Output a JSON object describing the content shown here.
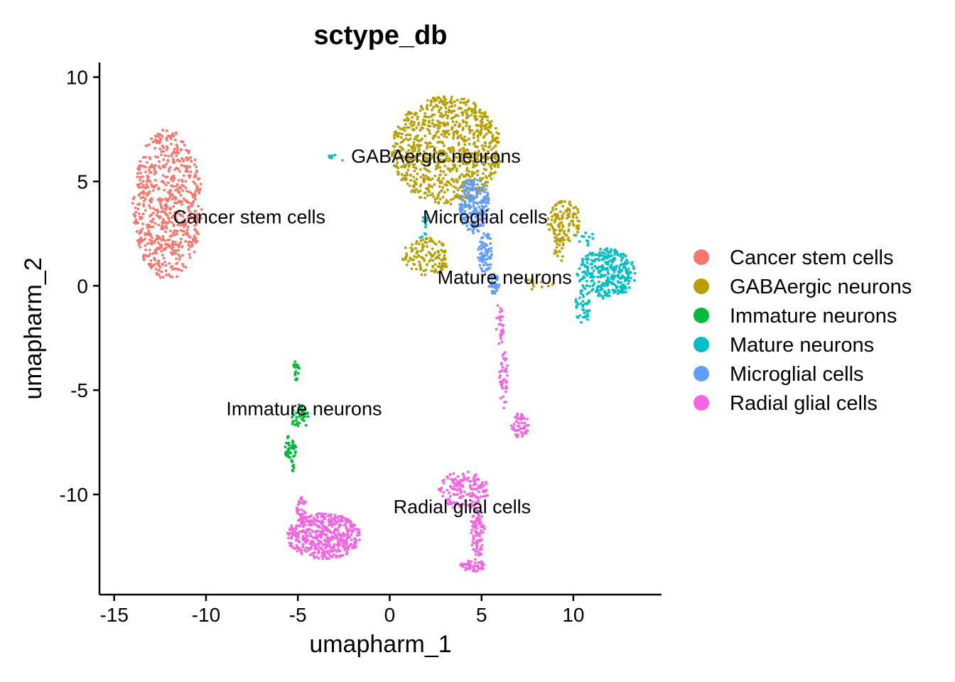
{
  "chart_data": {
    "type": "scatter",
    "title": "sctype_db",
    "xlabel": "umapharm_1",
    "ylabel": "umapharm_2",
    "xlim": [
      -15.8,
      14.8
    ],
    "ylim": [
      -14.8,
      10.7
    ],
    "xticks": [
      -15,
      -10,
      -5,
      0,
      5,
      10
    ],
    "xtick_labels": [
      "-15",
      "-10",
      "-5",
      "0",
      "5",
      "10"
    ],
    "yticks": [
      -10,
      -5,
      0,
      5,
      10
    ],
    "ytick_labels": [
      "-10",
      "-5",
      "0",
      "5",
      "10"
    ],
    "grid": false,
    "legend_position": "right",
    "series": [
      {
        "name": "Cancer stem cells",
        "color": "#F8766D",
        "regions": [
          {
            "cx": -12.1,
            "cy": 3.9,
            "rx": 1.9,
            "ry": 3.6,
            "n": 700
          }
        ]
      },
      {
        "name": "GABAergic neurons",
        "color": "#B79F00",
        "regions": [
          {
            "cx": 3.1,
            "cy": 6.5,
            "rx": 3.0,
            "ry": 2.6,
            "n": 900
          },
          {
            "cx": 9.5,
            "cy": 3.1,
            "rx": 0.9,
            "ry": 1.0,
            "n": 120
          },
          {
            "cx": 2.0,
            "cy": 1.4,
            "rx": 1.3,
            "ry": 0.9,
            "n": 130
          },
          {
            "cx": 9.2,
            "cy": 1.7,
            "rx": 0.3,
            "ry": 0.6,
            "n": 20
          },
          {
            "cx": 8.0,
            "cy": 0.1,
            "rx": 0.9,
            "ry": 0.3,
            "n": 12
          }
        ]
      },
      {
        "name": "Immature neurons",
        "color": "#00BA38",
        "regions": [
          {
            "cx": -5.1,
            "cy": -4.1,
            "rx": 0.2,
            "ry": 0.5,
            "n": 20
          },
          {
            "cx": -4.9,
            "cy": -6.3,
            "rx": 0.5,
            "ry": 0.6,
            "n": 45
          },
          {
            "cx": -5.4,
            "cy": -7.7,
            "rx": 0.35,
            "ry": 0.6,
            "n": 45
          },
          {
            "cx": -5.3,
            "cy": -8.6,
            "rx": 0.1,
            "ry": 0.3,
            "n": 8
          }
        ]
      },
      {
        "name": "Mature neurons",
        "color": "#00BFC4",
        "regions": [
          {
            "cx": 11.8,
            "cy": 0.6,
            "rx": 1.6,
            "ry": 1.2,
            "n": 320
          },
          {
            "cx": 10.5,
            "cy": -1.0,
            "rx": 0.4,
            "ry": 0.9,
            "n": 40
          },
          {
            "cx": -3.1,
            "cy": 6.2,
            "rx": 0.2,
            "ry": 0.1,
            "n": 6
          },
          {
            "cx": 1.8,
            "cy": 2.8,
            "rx": 0.3,
            "ry": 0.6,
            "n": 14
          },
          {
            "cx": 10.6,
            "cy": 2.3,
            "rx": 0.5,
            "ry": 0.4,
            "n": 12
          }
        ]
      },
      {
        "name": "Microglial cells",
        "color": "#619CFF",
        "regions": [
          {
            "cx": 4.6,
            "cy": 3.9,
            "rx": 0.8,
            "ry": 1.4,
            "n": 200
          },
          {
            "cx": 5.2,
            "cy": 1.6,
            "rx": 0.4,
            "ry": 1.0,
            "n": 80
          },
          {
            "cx": 5.7,
            "cy": 0.1,
            "rx": 0.3,
            "ry": 0.5,
            "n": 40
          },
          {
            "cx": -2.6,
            "cy": 6.0,
            "rx": 0.05,
            "ry": 0.05,
            "n": 1
          }
        ]
      },
      {
        "name": "Radial glial cells",
        "color": "#F564E3",
        "regions": [
          {
            "cx": -3.6,
            "cy": -12.0,
            "rx": 2.0,
            "ry": 1.1,
            "n": 480
          },
          {
            "cx": -4.8,
            "cy": -10.6,
            "rx": 0.3,
            "ry": 0.5,
            "n": 25
          },
          {
            "cx": 4.0,
            "cy": -9.8,
            "rx": 1.4,
            "ry": 0.9,
            "n": 160
          },
          {
            "cx": 4.8,
            "cy": -11.8,
            "rx": 0.4,
            "ry": 1.2,
            "n": 90
          },
          {
            "cx": 4.5,
            "cy": -13.4,
            "rx": 0.7,
            "ry": 0.3,
            "n": 50
          },
          {
            "cx": 6.0,
            "cy": -1.8,
            "rx": 0.25,
            "ry": 1.0,
            "n": 30
          },
          {
            "cx": 6.2,
            "cy": -4.5,
            "rx": 0.25,
            "ry": 1.4,
            "n": 45
          },
          {
            "cx": 7.1,
            "cy": -6.7,
            "rx": 0.5,
            "ry": 0.6,
            "n": 55
          }
        ]
      }
    ],
    "annotations": [
      {
        "text": "Cancer stem cells",
        "x": -11.8,
        "y": 3.3
      },
      {
        "text": "GABAergic neurons",
        "x": -2.1,
        "y": 6.2
      },
      {
        "text": "Microglial cells",
        "x": 1.8,
        "y": 3.3
      },
      {
        "text": "Mature neurons",
        "x": 2.6,
        "y": 0.4
      },
      {
        "text": "Immature neurons",
        "x": -8.9,
        "y": -5.9
      },
      {
        "text": "Radial glial cells",
        "x": 0.2,
        "y": -10.6
      }
    ]
  }
}
